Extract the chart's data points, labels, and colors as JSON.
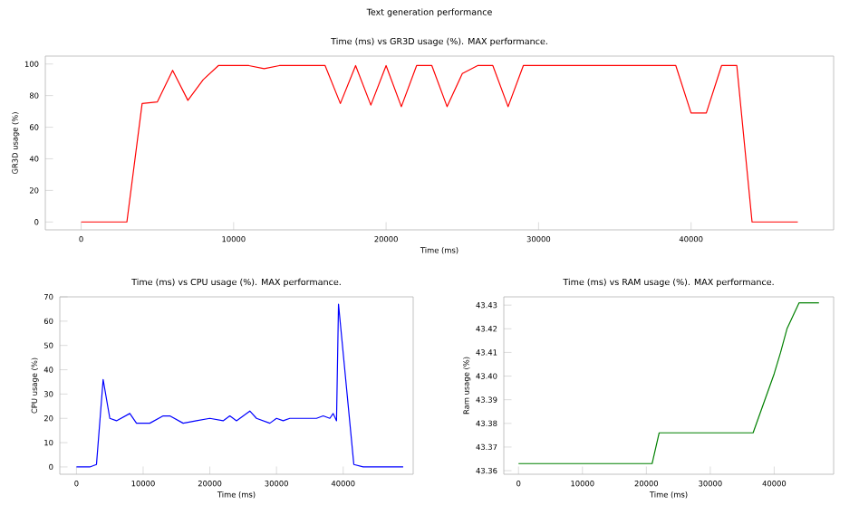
{
  "chart_data": [
    {
      "type": "line",
      "title": "Text generation performance",
      "subtitle": "Time (ms) vs GR3D usage (%). MAX performance.",
      "xlabel": "Time (ms)",
      "ylabel": "GR3D usage (%)",
      "marker": "none",
      "line_style": "solid",
      "xlim": [
        -2350,
        49350
      ],
      "ylim": [
        -5,
        105
      ],
      "xticks": [
        0,
        10000,
        20000,
        30000,
        40000
      ],
      "yticks": [
        0,
        20,
        40,
        60,
        80,
        100
      ],
      "series": [
        {
          "color": "#ff0000",
          "x": [
            0,
            1000,
            2000,
            3000,
            4000,
            5000,
            6000,
            7000,
            8000,
            9000,
            10000,
            11000,
            12000,
            13000,
            14000,
            15000,
            16000,
            17000,
            18000,
            19000,
            20000,
            21000,
            22000,
            23000,
            24000,
            25000,
            26000,
            27000,
            28000,
            29000,
            30000,
            31000,
            32000,
            33000,
            34000,
            35000,
            36000,
            37000,
            38000,
            39000,
            40000,
            41000,
            42000,
            43000,
            44000,
            45000,
            46000,
            47000
          ],
          "values": [
            0,
            0,
            0,
            0,
            75,
            76,
            96,
            77,
            90,
            99,
            99,
            99,
            97,
            99,
            99,
            99,
            99,
            75,
            99,
            74,
            99,
            73,
            99,
            99,
            73,
            94,
            99,
            99,
            73,
            99,
            99,
            99,
            99,
            99,
            99,
            99,
            99,
            99,
            99,
            99,
            69,
            69,
            99,
            99,
            0,
            0,
            0,
            0
          ]
        }
      ]
    },
    {
      "type": "line",
      "title": "Time (ms) vs CPU usage (%). MAX performance.",
      "xlabel": "Time (ms)",
      "ylabel": "CPU usage (%)",
      "marker": "none",
      "line_style": "solid",
      "xlim": [
        -2500,
        50500
      ],
      "ylim": [
        -3,
        70
      ],
      "xticks": [
        0,
        10000,
        20000,
        30000,
        40000
      ],
      "yticks": [
        0,
        10,
        20,
        30,
        40,
        50,
        60,
        70
      ],
      "series": [
        {
          "color": "#0000ff",
          "x": [
            0,
            2000,
            3000,
            4000,
            5000,
            6000,
            8000,
            9000,
            11000,
            13000,
            14000,
            16000,
            18000,
            20000,
            22000,
            23000,
            24000,
            26000,
            27000,
            29000,
            30000,
            31000,
            32000,
            36000,
            37000,
            38000,
            38500,
            39000,
            39300,
            41600,
            43000,
            49000
          ],
          "values": [
            0,
            0,
            1,
            36,
            20,
            19,
            22,
            18,
            18,
            21,
            21,
            18,
            19,
            20,
            19,
            21,
            19,
            23,
            20,
            18,
            20,
            19,
            20,
            20,
            21,
            20,
            22,
            19,
            67,
            1,
            0,
            0
          ]
        }
      ]
    },
    {
      "type": "line",
      "title": "Time (ms) vs RAM usage (%). MAX performance.",
      "xlabel": "Time (ms)",
      "ylabel": "Ram usage (%)",
      "marker": "none",
      "line_style": "solid",
      "xlim": [
        -2300,
        49300
      ],
      "ylim": [
        43.3585,
        43.4335
      ],
      "xticks": [
        0,
        10000,
        20000,
        30000,
        40000
      ],
      "yticks": [
        43.36,
        43.37,
        43.38,
        43.39,
        {
          "value": 43.4,
          "label": "43.40"
        },
        43.41,
        43.42,
        43.43
      ],
      "series": [
        {
          "color": "#008000",
          "x": [
            0,
            20900,
            22000,
            36700,
            40000,
            41000,
            42000,
            43900,
            47000
          ],
          "values": [
            43.363,
            43.363,
            43.376,
            43.376,
            43.401,
            43.41,
            43.42,
            43.431,
            43.431
          ]
        }
      ]
    }
  ]
}
